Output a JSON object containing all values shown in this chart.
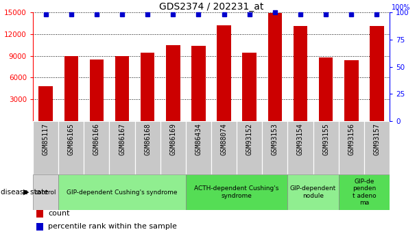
{
  "title": "GDS2374 / 202231_at",
  "samples": [
    "GSM85117",
    "GSM86165",
    "GSM86166",
    "GSM86167",
    "GSM86168",
    "GSM86169",
    "GSM86434",
    "GSM88074",
    "GSM93152",
    "GSM93153",
    "GSM93154",
    "GSM93155",
    "GSM93156",
    "GSM93157"
  ],
  "counts": [
    4800,
    9000,
    8500,
    9000,
    9400,
    10500,
    10400,
    13200,
    9400,
    14950,
    13100,
    8800,
    8400,
    13100
  ],
  "percentile": [
    98,
    98,
    98,
    98,
    98,
    98,
    98,
    98,
    98,
    100,
    98,
    98,
    98,
    98
  ],
  "ylim_left": [
    0,
    15000
  ],
  "ylim_right": [
    0,
    100
  ],
  "yticks_left": [
    3000,
    6000,
    9000,
    12000,
    15000
  ],
  "yticks_right": [
    0,
    25,
    50,
    75,
    100
  ],
  "bar_color": "#cc0000",
  "dot_color": "#0000cc",
  "groups": [
    {
      "label": "control",
      "start": 0,
      "end": 1,
      "color": "#d3d3d3"
    },
    {
      "label": "GIP-dependent Cushing's syndrome",
      "start": 1,
      "end": 6,
      "color": "#90ee90"
    },
    {
      "label": "ACTH-dependent Cushing's\nsyndrome",
      "start": 6,
      "end": 10,
      "color": "#55dd55"
    },
    {
      "label": "GIP-dependent\nnodule",
      "start": 10,
      "end": 12,
      "color": "#90ee90"
    },
    {
      "label": "GIP-de\npenden\nt adeno\nma",
      "start": 12,
      "end": 14,
      "color": "#55dd55"
    }
  ],
  "disease_state_label": "disease state",
  "legend_items": [
    {
      "label": "count",
      "color": "#cc0000"
    },
    {
      "label": "percentile rank within the sample",
      "color": "#0000cc"
    }
  ],
  "tick_bg_color": "#c8c8c8",
  "group_border_color": "#888888"
}
